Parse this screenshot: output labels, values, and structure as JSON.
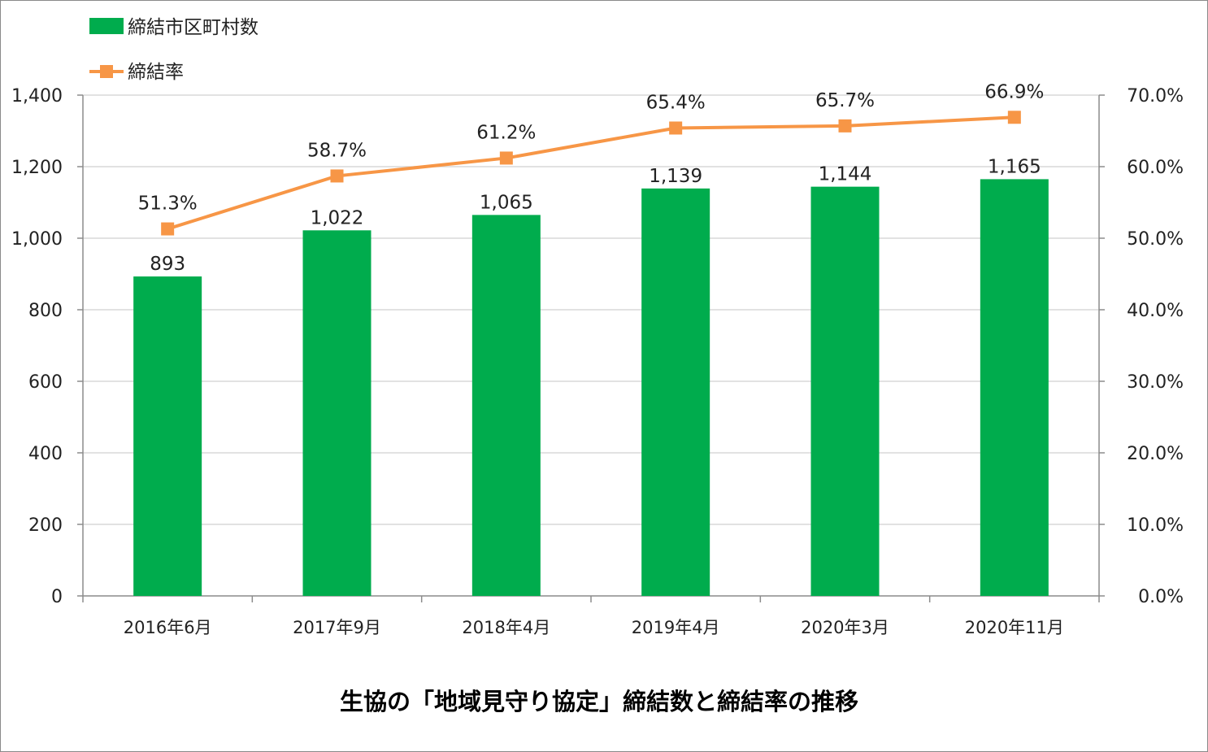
{
  "chart_data": {
    "type": "bar+line",
    "title": "生協の「地域見守り協定」締結数と締結率の推移",
    "categories": [
      "2016年6月",
      "2017年9月",
      "2018年4月",
      "2019年4月",
      "2020年3月",
      "2020年11月"
    ],
    "series": [
      {
        "name": "締結市区町村数",
        "type": "bar",
        "axis": "left",
        "color": "#00ac4d",
        "values": [
          893,
          1022,
          1065,
          1139,
          1144,
          1165
        ],
        "data_labels": [
          "893",
          "1,022",
          "1,065",
          "1,139",
          "1,144",
          "1,165"
        ]
      },
      {
        "name": "締結率",
        "type": "line",
        "axis": "right",
        "color": "#f79646",
        "values": [
          51.3,
          58.7,
          61.2,
          65.4,
          65.7,
          66.9
        ],
        "data_labels": [
          "51.3%",
          "58.7%",
          "61.2%",
          "65.4%",
          "65.7%",
          "66.9%"
        ]
      }
    ],
    "y_left": {
      "min": 0,
      "max": 1400,
      "ticks": [
        0,
        200,
        400,
        600,
        800,
        1000,
        1200,
        1400
      ],
      "tick_labels": [
        "0",
        "200",
        "400",
        "600",
        "800",
        "1,000",
        "1,200",
        "1,400"
      ]
    },
    "y_right": {
      "min": 0,
      "max": 70,
      "ticks": [
        0,
        10,
        20,
        30,
        40,
        50,
        60,
        70
      ],
      "tick_labels": [
        "0.0%",
        "10.0%",
        "20.0%",
        "30.0%",
        "40.0%",
        "50.0%",
        "60.0%",
        "70.0%"
      ]
    },
    "grid": true,
    "legend_position": "top-left",
    "gridline_color": "#d9d9d9",
    "axis_color": "#8c8c8c"
  }
}
